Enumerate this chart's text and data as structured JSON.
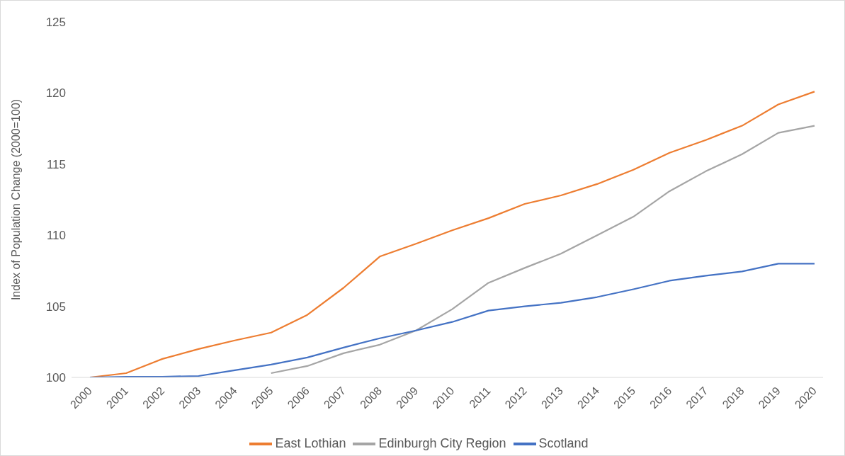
{
  "chart_data": {
    "type": "line",
    "ylabel": "Index of Population Change (2000=100)",
    "categories": [
      "2000",
      "2001",
      "2002",
      "2003",
      "2004",
      "2005",
      "2006",
      "2007",
      "2008",
      "2009",
      "2010",
      "2011",
      "2012",
      "2013",
      "2014",
      "2015",
      "2016",
      "2017",
      "2018",
      "2019",
      "2020"
    ],
    "ylim": [
      100,
      125
    ],
    "yticks": [
      100,
      105,
      110,
      115,
      120,
      125
    ],
    "grid": false,
    "legend": "bottom",
    "marker": "none",
    "line_style": "solid",
    "series": [
      {
        "name": "East Lothian",
        "color": "#ed7d31",
        "values": [
          100,
          100.3,
          101.3,
          102.0,
          102.6,
          103.15,
          104.4,
          106.3,
          108.5,
          109.4,
          110.35,
          111.2,
          112.2,
          112.8,
          113.6,
          114.6,
          115.8,
          116.7,
          117.7,
          119.2,
          120.1
        ]
      },
      {
        "name": "Edinburgh City Region",
        "color": "#a5a5a5",
        "values": [
          null,
          null,
          null,
          null,
          null,
          100.3,
          100.8,
          101.7,
          102.3,
          103.3,
          104.8,
          106.65,
          107.7,
          108.7,
          110.0,
          111.3,
          113.1,
          114.5,
          115.7,
          117.2,
          117.7
        ]
      },
      {
        "name": "Scotland",
        "color": "#4472c4",
        "values": [
          100,
          100.05,
          100.05,
          100.1,
          100.5,
          100.9,
          101.4,
          102.1,
          102.75,
          103.3,
          103.9,
          104.7,
          105.0,
          105.25,
          105.65,
          106.2,
          106.8,
          107.15,
          107.45,
          108.0,
          108.0
        ]
      }
    ]
  }
}
